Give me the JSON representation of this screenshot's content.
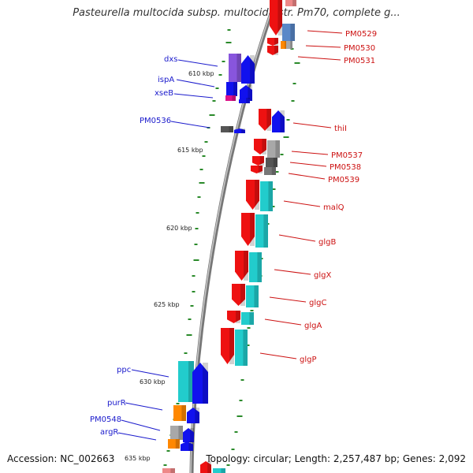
{
  "title": "Pasteurella multocida subsp. multocida str. Pm70, complete g...",
  "footer": {
    "accession": "Accession: NC_002663",
    "summary": "Topology: circular; Length: 2,257,487 bp; Genes: 2,092"
  },
  "colors": {
    "left_label": "#1a1acc",
    "right_label": "#cc1111",
    "backbone": "#8a8a8a",
    "tick": "#2a8a2a"
  },
  "scale": [
    {
      "label": "610 kbp"
    },
    {
      "label": "615 kbp"
    },
    {
      "label": "620 kbp"
    },
    {
      "label": "625 kbp"
    },
    {
      "label": "630 kbp"
    },
    {
      "label": "635 kbp"
    }
  ],
  "left_genes": [
    {
      "label": "dxs",
      "strand": "reverse",
      "color": "#1111ee"
    },
    {
      "label": "ispA",
      "strand": "reverse",
      "color": "#1111ee"
    },
    {
      "label": "xseB",
      "strand": "reverse",
      "color": "#1111ee"
    },
    {
      "label": "PM0536",
      "strand": "reverse",
      "color": "#1111ee"
    },
    {
      "label": "ppc",
      "strand": "reverse",
      "color": "#1111ee"
    },
    {
      "label": "purR",
      "strand": "reverse",
      "color": "#1111ee"
    },
    {
      "label": "PM0548",
      "strand": "reverse",
      "color": "#1111ee"
    },
    {
      "label": "argR",
      "strand": "reverse",
      "color": "#1111ee"
    }
  ],
  "right_genes": [
    {
      "label": "PM0529",
      "strand": "forward",
      "color": "#ee1111"
    },
    {
      "label": "PM0530",
      "strand": "forward",
      "color": "#ee1111"
    },
    {
      "label": "PM0531",
      "strand": "forward",
      "color": "#ee1111"
    },
    {
      "label": "thiI",
      "strand": "forward",
      "color": "#ee1111"
    },
    {
      "label": "PM0537",
      "strand": "forward",
      "color": "#ee1111"
    },
    {
      "label": "PM0538",
      "strand": "forward",
      "color": "#ee1111"
    },
    {
      "label": "PM0539",
      "strand": "forward",
      "color": "#ee1111"
    },
    {
      "label": "malQ",
      "strand": "forward",
      "color": "#ee1111"
    },
    {
      "label": "glgB",
      "strand": "forward",
      "color": "#ee1111"
    },
    {
      "label": "glgX",
      "strand": "forward",
      "color": "#ee1111"
    },
    {
      "label": "glgC",
      "strand": "forward",
      "color": "#ee1111"
    },
    {
      "label": "glgA",
      "strand": "forward",
      "color": "#ee1111"
    },
    {
      "label": "glgP",
      "strand": "forward",
      "color": "#ee1111"
    }
  ]
}
